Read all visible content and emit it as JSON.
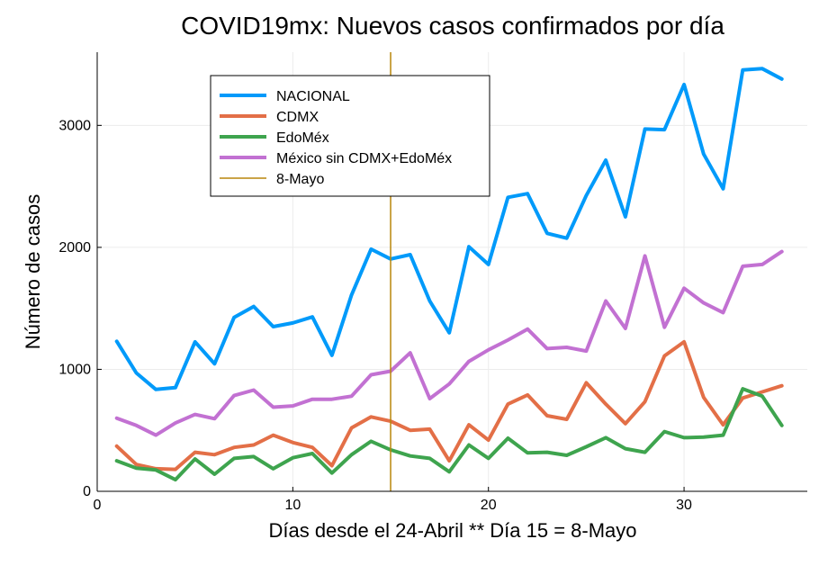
{
  "chart_data": {
    "type": "line",
    "title": "COVID19mx: Nuevos casos confirmados por día",
    "xlabel": "Días desde el 24-Abril ** Día 15 = 8-Mayo",
    "ylabel": "Número de casos",
    "xlim": [
      0,
      36.3
    ],
    "ylim": [
      0,
      3600
    ],
    "x_ticks": [
      0,
      10,
      20,
      30
    ],
    "y_ticks": [
      0,
      1000,
      2000,
      3000
    ],
    "grid": true,
    "legend_position": "top-left",
    "x": [
      1,
      2,
      3,
      4,
      5,
      6,
      7,
      8,
      9,
      10,
      11,
      12,
      13,
      14,
      15,
      16,
      17,
      18,
      19,
      20,
      21,
      22,
      23,
      24,
      25,
      26,
      27,
      28,
      29,
      30,
      31,
      32,
      33,
      34,
      35
    ],
    "series": [
      {
        "name": "NACIONAL",
        "color": "#009AFA",
        "values": [
          1230,
          970,
          835,
          850,
          1225,
          1045,
          1425,
          1515,
          1350,
          1380,
          1430,
          1115,
          1610,
          1985,
          1905,
          1940,
          1560,
          1300,
          2005,
          1860,
          2410,
          2440,
          2115,
          2075,
          2425,
          2715,
          2250,
          2970,
          2965,
          3335,
          2765,
          2480,
          3455,
          3465,
          3380
        ]
      },
      {
        "name": "CDMX",
        "color": "#E36F47",
        "values": [
          370,
          220,
          185,
          180,
          320,
          300,
          360,
          380,
          460,
          400,
          360,
          210,
          520,
          610,
          575,
          500,
          510,
          250,
          545,
          420,
          715,
          790,
          620,
          590,
          890,
          715,
          555,
          735,
          1110,
          1225,
          770,
          545,
          765,
          815,
          865
        ]
      },
      {
        "name": "EdoMéx",
        "color": "#3EA44E",
        "values": [
          250,
          190,
          175,
          95,
          265,
          140,
          270,
          285,
          185,
          275,
          310,
          150,
          300,
          410,
          340,
          290,
          270,
          160,
          380,
          270,
          435,
          315,
          320,
          295,
          365,
          440,
          350,
          320,
          490,
          440,
          445,
          460,
          840,
          780,
          540
        ]
      },
      {
        "name": "México sin CDMX+EdoMéx",
        "color": "#C271D2",
        "values": [
          600,
          540,
          460,
          560,
          630,
          595,
          785,
          830,
          690,
          700,
          755,
          755,
          780,
          955,
          985,
          1135,
          760,
          880,
          1065,
          1160,
          1240,
          1330,
          1170,
          1180,
          1150,
          1560,
          1335,
          1930,
          1345,
          1665,
          1545,
          1465,
          1845,
          1860,
          1965
        ]
      }
    ],
    "vline": {
      "name": "8-Mayo",
      "x": 15,
      "color": "#B8860B"
    },
    "legend": [
      "NACIONAL",
      "CDMX",
      "EdoMéx",
      "México sin CDMX+EdoMéx",
      "8-Mayo"
    ]
  }
}
